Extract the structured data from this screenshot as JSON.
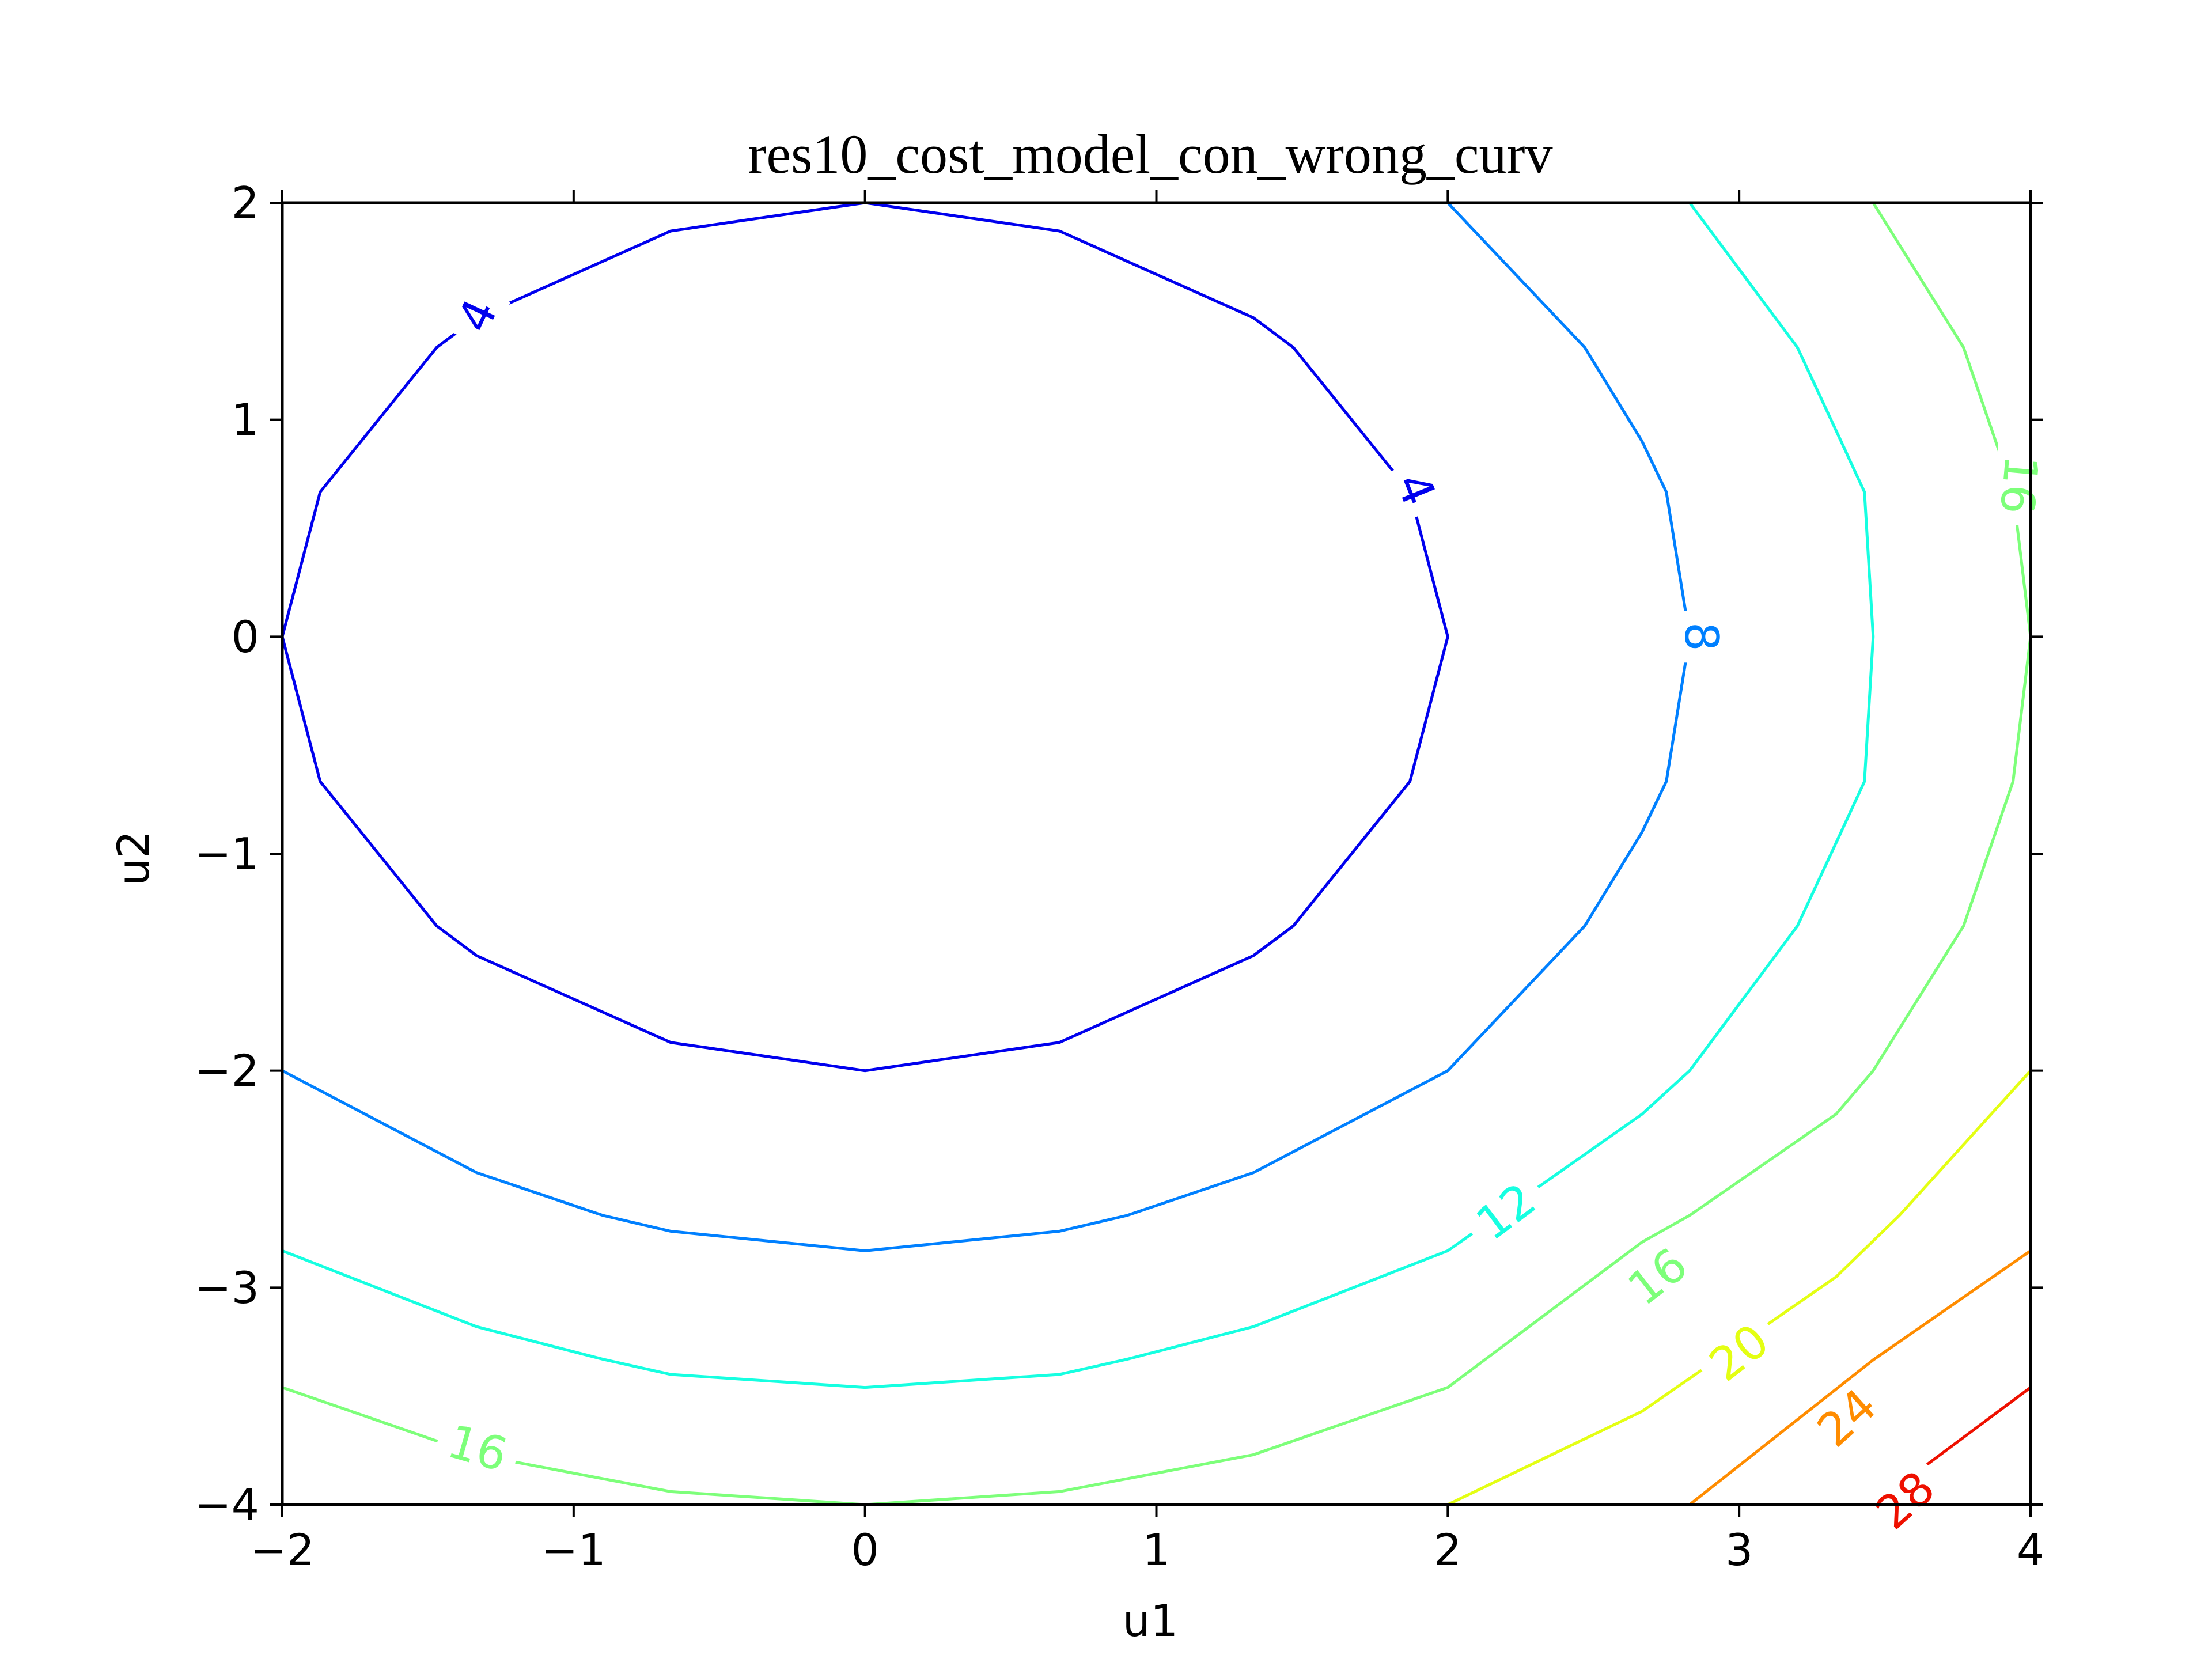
{
  "chart_data": {
    "type": "contour",
    "title": "res10_cost_model_con_wrong_curv",
    "xlabel": "u1",
    "ylabel": "u2",
    "xlim": [
      -2,
      4
    ],
    "ylim": [
      -4,
      2
    ],
    "xticks": [
      -2,
      -1,
      0,
      1,
      2,
      3,
      4
    ],
    "yticks": [
      -4,
      -3,
      -2,
      -1,
      0,
      1,
      2
    ],
    "xtick_labels": [
      "−2",
      "−1",
      "0",
      "1",
      "2",
      "3",
      "4"
    ],
    "ytick_labels": [
      "−4",
      "−3",
      "−2",
      "−1",
      "0",
      "1",
      "2"
    ],
    "grid": false,
    "colormap": "jet",
    "levels": [
      {
        "level": 4,
        "label": "4",
        "color": "#0000ee",
        "points": [
          [
            0,
            2
          ],
          [
            0.667,
            1.87
          ],
          [
            1.333,
            1.47
          ],
          [
            1.47,
            1.333
          ],
          [
            1.87,
            0.667
          ],
          [
            2,
            0
          ],
          [
            1.87,
            -0.667
          ],
          [
            1.47,
            -1.333
          ],
          [
            1.333,
            -1.47
          ],
          [
            0.667,
            -1.87
          ],
          [
            0,
            -2
          ],
          [
            -0.667,
            -1.87
          ],
          [
            -1.333,
            -1.47
          ],
          [
            -1.47,
            -1.333
          ],
          [
            -1.87,
            -0.667
          ],
          [
            -2,
            0
          ],
          [
            -1.87,
            0.667
          ],
          [
            -1.47,
            1.333
          ],
          [
            -1.333,
            1.47
          ],
          [
            -0.667,
            1.87
          ],
          [
            0,
            2
          ]
        ],
        "label_positions": [
          [
            -1.33,
            1.48,
            -65
          ],
          [
            1.89,
            0.68,
            68
          ]
        ]
      },
      {
        "level": 8,
        "label": "8",
        "color": "#0080ff",
        "points": [
          [
            2,
            2
          ],
          [
            2.47,
            1.333
          ],
          [
            2.667,
            0.9
          ],
          [
            2.75,
            0.667
          ],
          [
            2.83,
            0
          ],
          [
            2.75,
            -0.667
          ],
          [
            2.667,
            -0.9
          ],
          [
            2.47,
            -1.333
          ],
          [
            2,
            -2
          ],
          [
            1.333,
            -2.47
          ],
          [
            0.9,
            -2.667
          ],
          [
            0.667,
            -2.74
          ],
          [
            0,
            -2.83
          ],
          [
            -0.667,
            -2.74
          ],
          [
            -0.9,
            -2.667
          ],
          [
            -1.333,
            -2.47
          ],
          [
            -2,
            -2
          ]
        ],
        "label_positions": [
          [
            2.87,
            0.0,
            90
          ]
        ]
      },
      {
        "level": 12,
        "label": "12",
        "color": "#16ffe1",
        "points": [
          [
            2.83,
            2
          ],
          [
            3.2,
            1.333
          ],
          [
            3.35,
            0.9
          ],
          [
            3.43,
            0.667
          ],
          [
            3.46,
            0
          ],
          [
            3.43,
            -0.667
          ],
          [
            3.35,
            -0.9
          ],
          [
            3.2,
            -1.333
          ],
          [
            2.83,
            -2
          ],
          [
            2.667,
            -2.2
          ],
          [
            2,
            -2.83
          ],
          [
            1.333,
            -3.18
          ],
          [
            0.9,
            -3.33
          ],
          [
            0.667,
            -3.4
          ],
          [
            0,
            -3.46
          ],
          [
            -0.667,
            -3.4
          ],
          [
            -0.9,
            -3.33
          ],
          [
            -1.333,
            -3.18
          ],
          [
            -2,
            -2.83
          ]
        ],
        "label_positions": [
          [
            2.2,
            -2.65,
            -37
          ]
        ]
      },
      {
        "level": 16,
        "label": "16",
        "color": "#7dff7a",
        "points": [
          [
            3.46,
            2
          ],
          [
            3.77,
            1.333
          ],
          [
            3.94,
            0.667
          ],
          [
            4,
            0
          ],
          [
            3.94,
            -0.667
          ],
          [
            3.77,
            -1.333
          ],
          [
            3.46,
            -2
          ],
          [
            3.333,
            -2.2
          ],
          [
            2.83,
            -2.667
          ],
          [
            2.667,
            -2.79
          ],
          [
            2,
            -3.46
          ],
          [
            1.333,
            -3.77
          ],
          [
            0.667,
            -3.94
          ],
          [
            0,
            -4
          ],
          [
            -0.667,
            -3.94
          ],
          [
            -1.333,
            -3.77
          ],
          [
            -2,
            -3.46
          ]
        ],
        "label_positions": [
          [
            3.96,
            0.7,
            95
          ],
          [
            2.72,
            -2.95,
            -38
          ],
          [
            -1.33,
            -3.74,
            16
          ]
        ]
      },
      {
        "level": 20,
        "label": "20",
        "color": "#e4ff13",
        "points": [
          [
            4,
            -2
          ],
          [
            3.55,
            -2.667
          ],
          [
            3.333,
            -2.95
          ],
          [
            2.667,
            -3.57
          ],
          [
            2,
            -4
          ]
        ],
        "label_positions": [
          [
            3.0,
            -3.3,
            -38
          ]
        ]
      },
      {
        "level": 24,
        "label": "24",
        "color": "#ff8c00",
        "points": [
          [
            4,
            -2.83
          ],
          [
            3.46,
            -3.333
          ],
          [
            2.83,
            -4
          ]
        ],
        "label_positions": [
          [
            3.37,
            -3.6,
            -42
          ]
        ]
      },
      {
        "level": 28,
        "label": "28",
        "color": "#ee1000",
        "points": [
          [
            4,
            -3.46
          ],
          [
            3.46,
            -4
          ]
        ],
        "label_positions": [
          [
            3.57,
            -3.98,
            -42
          ]
        ]
      }
    ]
  }
}
